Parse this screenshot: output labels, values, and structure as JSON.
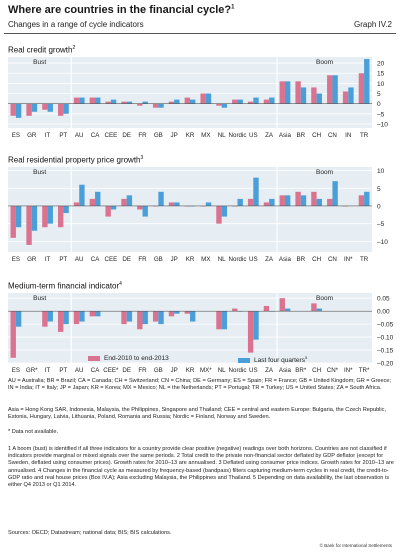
{
  "header": {
    "title": "Where are countries in the financial cycle?",
    "title_sup": "1",
    "subtitle": "Changes in a range of cycle indicators",
    "graph_id": "Graph IV.2"
  },
  "colors": {
    "series1": "#d9738f",
    "series2": "#4a9fd8",
    "bg": "#e6eef3"
  },
  "legend": {
    "series1": "End-2010 to end-2013",
    "series2": "Last four quarters",
    "series2_sup": "5"
  },
  "chart_data": [
    {
      "type": "bar",
      "title": "Real credit growth",
      "title_sup": "2",
      "categories": [
        "ES",
        "GR",
        "IT",
        "PT",
        "AU",
        "CA",
        "CEE",
        "DE",
        "FR",
        "GB",
        "JP",
        "KR",
        "MX",
        "NL",
        "Nordic",
        "US",
        "ZA",
        "Asia",
        "BR",
        "CH",
        "CN",
        "IN",
        "TR"
      ],
      "category_labels": [
        "ES",
        "GR",
        "IT",
        "PT",
        "AU",
        "CA",
        "CEE",
        "DE",
        "FR",
        "GB",
        "JP",
        "KR",
        "MX",
        "NL",
        "Nordic",
        "US",
        "ZA",
        "Asia",
        "BR",
        "CH",
        "CN",
        "IN",
        "TR"
      ],
      "series": [
        {
          "name": "End-2010 to end-2013",
          "values": [
            -6,
            -6,
            -3,
            -6,
            3,
            3,
            1,
            1,
            -1,
            -2,
            1,
            3,
            5,
            -1,
            2,
            1,
            2,
            11,
            11,
            8,
            14,
            6,
            15
          ]
        },
        {
          "name": "Last four quarters",
          "values": [
            -7,
            -4,
            -4,
            -5,
            3,
            3,
            2,
            1,
            1,
            -2,
            2,
            2,
            5,
            -2,
            2,
            3,
            3,
            11,
            8,
            5,
            14,
            8,
            22
          ]
        }
      ],
      "yticks": [
        -10,
        -5,
        0,
        5,
        10,
        15,
        20
      ],
      "ylim": [
        -12,
        23
      ],
      "regions": [
        {
          "label": "Bust",
          "from": 0,
          "to": 3
        },
        {
          "label": "Boom",
          "from": 17,
          "to": 22
        }
      ]
    },
    {
      "type": "bar",
      "title": "Real residential property price growth",
      "title_sup": "3",
      "categories": [
        "ES",
        "GR",
        "IT",
        "PT",
        "AU",
        "CA",
        "CEE",
        "DE",
        "FR",
        "GB",
        "JP",
        "KR",
        "MX",
        "NL",
        "Nordic",
        "US",
        "ZA",
        "Asia",
        "BR",
        "CH",
        "CN",
        "IN",
        "TR"
      ],
      "category_labels": [
        "ES",
        "GR",
        "IT",
        "PT",
        "AU",
        "CA",
        "CEE",
        "DE",
        "FR",
        "GB",
        "JP",
        "KR",
        "MX",
        "NL",
        "Nordic",
        "US",
        "ZA",
        "Asia",
        "BR",
        "CH",
        "CN",
        "IN*",
        "TR"
      ],
      "series": [
        {
          "name": "End-2010 to end-2013",
          "values": [
            -9,
            -11,
            -6,
            -6,
            1,
            2,
            -3,
            2,
            -1,
            0,
            1,
            0,
            0,
            -5,
            0,
            2,
            1,
            3,
            4,
            4,
            2,
            0,
            3
          ]
        },
        {
          "name": "Last four quarters",
          "values": [
            -6,
            -7,
            -5,
            -2,
            6,
            4,
            -1,
            3,
            -3,
            4,
            1,
            0,
            1,
            -3,
            2,
            8,
            2,
            3,
            3,
            2,
            7,
            null,
            4
          ]
        }
      ],
      "yticks": [
        -10,
        -5,
        0,
        5,
        10
      ],
      "ylim": [
        -13,
        11
      ],
      "regions": [
        {
          "label": "Bust",
          "from": 0,
          "to": 3
        },
        {
          "label": "Boom",
          "from": 17,
          "to": 22
        }
      ]
    },
    {
      "type": "bar",
      "title": "Medium-term financial indicator",
      "title_sup": "4",
      "categories": [
        "ES",
        "GR",
        "IT",
        "PT",
        "AU",
        "CA",
        "CEE",
        "DE",
        "FR",
        "GB",
        "JP",
        "KR",
        "MX",
        "NL",
        "Nordic",
        "US",
        "ZA",
        "Asia",
        "BR",
        "CH",
        "CN",
        "IN",
        "TR"
      ],
      "category_labels": [
        "ES",
        "GR*",
        "IT",
        "PT",
        "AU",
        "CA",
        "CEE*",
        "DE",
        "FR",
        "GB",
        "JP",
        "KR",
        "MX*",
        "NL",
        "Nordic",
        "US",
        "ZA",
        "Asia",
        "BR*",
        "CH",
        "CN*",
        "IN*",
        "TR*"
      ],
      "series": [
        {
          "name": "End-2010 to end-2013",
          "values": [
            -0.18,
            null,
            -0.06,
            -0.08,
            -0.05,
            -0.02,
            null,
            -0.05,
            -0.07,
            -0.04,
            -0.02,
            -0.01,
            null,
            -0.07,
            0.01,
            -0.16,
            0.02,
            0.05,
            null,
            0.03,
            null,
            null,
            null
          ]
        },
        {
          "name": "Last four quarters",
          "values": [
            -0.06,
            null,
            -0.04,
            -0.05,
            -0.04,
            -0.02,
            null,
            -0.04,
            -0.05,
            -0.05,
            -0.01,
            -0.04,
            null,
            -0.07,
            0.0,
            -0.11,
            0.0,
            0.01,
            null,
            0.01,
            null,
            null,
            null
          ]
        }
      ],
      "yticks": [
        -0.2,
        -0.15,
        -0.1,
        -0.05,
        0.0,
        0.05
      ],
      "ytick_labels": [
        "–0.20",
        "–0.15",
        "–0.10",
        "–0.05",
        "0.00",
        "0.05"
      ],
      "ylim": [
        -0.2,
        0.07
      ],
      "regions": [
        {
          "label": "Bust",
          "from": 0,
          "to": 3
        },
        {
          "label": "Boom",
          "from": 17,
          "to": 22
        }
      ]
    }
  ],
  "notes": {
    "abbr1": "AU = Australia; BR = Brazil; CA = Canada; CH = Switzerland; CN = China; DE = Germany; ES = Spain; FR = France; GB = United Kingdom; GR = Greece; IN = India; IT = Italy; JP = Japan; KR = Korea; MX = Mexico; NL = the Netherlands; PT = Portugal; TR = Turkey; US = United States; ZA = South Africa.",
    "abbr2": "Asia = Hong Kong SAR, Indonesia, Malaysia, the Philippines, Singapore and Thailand; CEE = central and eastern Europe: Bulgaria, the Czech Republic, Estonia, Hungary, Latvia, Lithuania, Poland, Romania and Russia; Nordic = Finland, Norway and Sweden.",
    "na": "* Data not available.",
    "footnotes": "1 A boom (bust) is identified if all three indicators for a country provide clear positive (negative) readings over both horizons. Countries are not classified if indicators provide marginal or mixed signals over the same periods. 2 Total credit to the private non-financial sector deflated by GDP deflator (except for Sweden, deflated using consumer prices). Growth rates for 2010–13 are annualised. 3 Deflated using consumer price indices. Growth rates for 2010–13 are annualised. 4 Changes in the financial cycle as measured by frequency-based (bandpass) filters capturing medium-term cycles in real credit, the credit-to-GDP ratio and real house prices (Box IV.A); Asia excluding Malaysia, the Philippines and Thailand. 5 Depending on data availability, the last observation is either Q4 2013 or Q1 2014.",
    "sources": "Sources: OECD; Datastream; national data; BIS; BIS calculations.",
    "copyright": "© Bank for International Settlements"
  }
}
